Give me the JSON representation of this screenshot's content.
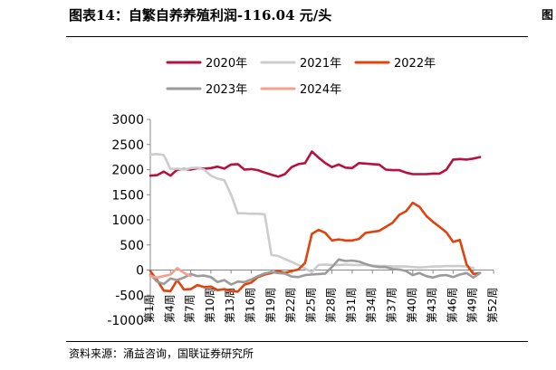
{
  "header": {
    "title": "图表14：自繁自养养殖利润-116.04 元/头"
  },
  "footer": {
    "source": "资料来源：涌益咨询，国联证券研究所"
  },
  "edge": {
    "next_title_fragment": "图"
  },
  "chart_data": {
    "type": "line",
    "title": "",
    "xlabel": "",
    "ylabel": "",
    "ylim": [
      -1000,
      3000
    ],
    "yticks": [
      -1000,
      -500,
      0,
      500,
      1000,
      1500,
      2000,
      2500,
      3000
    ],
    "xlim": [
      1,
      52
    ],
    "xtick_weeks": [
      1,
      4,
      7,
      10,
      13,
      16,
      19,
      22,
      25,
      28,
      31,
      34,
      37,
      40,
      43,
      46,
      49,
      52
    ],
    "xtick_labels": [
      "第1周",
      "第4周",
      "第7周",
      "第10周",
      "第13周",
      "第16周",
      "第19周",
      "第22周",
      "第25周",
      "第28周",
      "第31周",
      "第34周",
      "第37周",
      "第40周",
      "第43周",
      "第46周",
      "第49周",
      "第52周"
    ],
    "grid": false,
    "legend_position": "top",
    "series": [
      {
        "name": "2020年",
        "color": "#b5123f",
        "points": [
          [
            1,
            1880
          ],
          [
            2,
            1890
          ],
          [
            3,
            1960
          ],
          [
            4,
            1880
          ],
          [
            5,
            2000
          ],
          [
            6,
            2010
          ],
          [
            7,
            2000
          ],
          [
            8,
            2030
          ],
          [
            9,
            2020
          ],
          [
            10,
            2030
          ],
          [
            11,
            2060
          ],
          [
            12,
            2020
          ],
          [
            13,
            2100
          ],
          [
            14,
            2110
          ],
          [
            15,
            2000
          ],
          [
            16,
            2010
          ],
          [
            17,
            1990
          ],
          [
            18,
            1940
          ],
          [
            19,
            1900
          ],
          [
            20,
            1860
          ],
          [
            21,
            1910
          ],
          [
            22,
            2050
          ],
          [
            23,
            2110
          ],
          [
            24,
            2130
          ],
          [
            25,
            2360
          ],
          [
            26,
            2240
          ],
          [
            27,
            2130
          ],
          [
            28,
            2050
          ],
          [
            29,
            2100
          ],
          [
            30,
            2040
          ],
          [
            31,
            2030
          ],
          [
            32,
            2130
          ],
          [
            33,
            2120
          ],
          [
            34,
            2110
          ],
          [
            35,
            2100
          ],
          [
            36,
            2000
          ],
          [
            37,
            1990
          ],
          [
            38,
            1990
          ],
          [
            39,
            1940
          ],
          [
            40,
            1910
          ],
          [
            41,
            1910
          ],
          [
            42,
            1910
          ],
          [
            43,
            1920
          ],
          [
            44,
            1920
          ],
          [
            45,
            2000
          ],
          [
            46,
            2200
          ],
          [
            47,
            2210
          ],
          [
            48,
            2200
          ],
          [
            49,
            2220
          ],
          [
            50,
            2250
          ]
        ]
      },
      {
        "name": "2021年",
        "color": "#cccccc",
        "points": [
          [
            1,
            2300
          ],
          [
            2,
            2310
          ],
          [
            3,
            2290
          ],
          [
            4,
            2010
          ],
          [
            5,
            2020
          ],
          [
            6,
            2000
          ],
          [
            7,
            2030
          ],
          [
            8,
            2040
          ],
          [
            9,
            2000
          ],
          [
            10,
            1880
          ],
          [
            11,
            1820
          ],
          [
            12,
            1790
          ],
          [
            13,
            1500
          ],
          [
            14,
            1130
          ],
          [
            15,
            1130
          ],
          [
            16,
            1120
          ],
          [
            17,
            1120
          ],
          [
            18,
            1110
          ],
          [
            19,
            300
          ],
          [
            20,
            280
          ],
          [
            21,
            220
          ],
          [
            22,
            160
          ],
          [
            23,
            100
          ],
          [
            24,
            30
          ],
          [
            25,
            -40
          ],
          [
            26,
            100
          ],
          [
            27,
            110
          ],
          [
            28,
            100
          ],
          [
            29,
            100
          ],
          [
            30,
            110
          ],
          [
            31,
            100
          ],
          [
            32,
            100
          ],
          [
            33,
            100
          ],
          [
            34,
            90
          ],
          [
            35,
            80
          ],
          [
            36,
            80
          ],
          [
            37,
            70
          ],
          [
            38,
            70
          ],
          [
            39,
            70
          ],
          [
            40,
            60
          ],
          [
            41,
            50
          ],
          [
            42,
            60
          ],
          [
            43,
            70
          ],
          [
            44,
            70
          ],
          [
            45,
            80
          ],
          [
            46,
            80
          ],
          [
            47,
            80
          ],
          [
            48,
            70
          ],
          [
            49,
            40
          ]
        ]
      },
      {
        "name": "2022年",
        "color": "#e0440e",
        "points": [
          [
            1,
            -20
          ],
          [
            2,
            -200
          ],
          [
            3,
            -410
          ],
          [
            4,
            -420
          ],
          [
            5,
            -200
          ],
          [
            6,
            -390
          ],
          [
            7,
            -380
          ],
          [
            8,
            -300
          ],
          [
            9,
            -340
          ],
          [
            10,
            -330
          ],
          [
            11,
            -400
          ],
          [
            12,
            -380
          ],
          [
            13,
            -420
          ],
          [
            14,
            -430
          ],
          [
            15,
            -290
          ],
          [
            16,
            -250
          ],
          [
            17,
            -140
          ],
          [
            18,
            -90
          ],
          [
            19,
            -60
          ],
          [
            20,
            -20
          ],
          [
            21,
            -60
          ],
          [
            22,
            -20
          ],
          [
            23,
            10
          ],
          [
            24,
            140
          ],
          [
            25,
            720
          ],
          [
            26,
            800
          ],
          [
            27,
            740
          ],
          [
            28,
            590
          ],
          [
            29,
            610
          ],
          [
            30,
            590
          ],
          [
            31,
            590
          ],
          [
            32,
            620
          ],
          [
            33,
            740
          ],
          [
            34,
            760
          ],
          [
            35,
            780
          ],
          [
            36,
            860
          ],
          [
            37,
            940
          ],
          [
            38,
            1100
          ],
          [
            39,
            1170
          ],
          [
            40,
            1340
          ],
          [
            41,
            1260
          ],
          [
            42,
            1080
          ],
          [
            43,
            960
          ],
          [
            44,
            860
          ],
          [
            45,
            750
          ],
          [
            46,
            560
          ],
          [
            47,
            600
          ],
          [
            48,
            110
          ],
          [
            49,
            -80
          ],
          [
            50,
            -60
          ]
        ]
      },
      {
        "name": "2023年",
        "color": "#9b9b9b",
        "points": [
          [
            1,
            -90
          ],
          [
            2,
            -230
          ],
          [
            3,
            -280
          ],
          [
            4,
            -170
          ],
          [
            5,
            -200
          ],
          [
            6,
            -150
          ],
          [
            7,
            -80
          ],
          [
            8,
            -120
          ],
          [
            9,
            -110
          ],
          [
            10,
            -140
          ],
          [
            11,
            -240
          ],
          [
            12,
            -200
          ],
          [
            13,
            -290
          ],
          [
            14,
            -230
          ],
          [
            15,
            -240
          ],
          [
            16,
            -190
          ],
          [
            17,
            -120
          ],
          [
            18,
            -70
          ],
          [
            19,
            -40
          ],
          [
            20,
            -60
          ],
          [
            21,
            -70
          ],
          [
            22,
            -130
          ],
          [
            23,
            -140
          ],
          [
            24,
            -100
          ],
          [
            25,
            -90
          ],
          [
            26,
            -80
          ],
          [
            27,
            -70
          ],
          [
            28,
            60
          ],
          [
            29,
            210
          ],
          [
            30,
            180
          ],
          [
            31,
            190
          ],
          [
            32,
            170
          ],
          [
            33,
            120
          ],
          [
            34,
            80
          ],
          [
            35,
            60
          ],
          [
            36,
            60
          ],
          [
            37,
            20
          ],
          [
            38,
            10
          ],
          [
            39,
            -20
          ],
          [
            40,
            -100
          ],
          [
            41,
            -60
          ],
          [
            42,
            -120
          ],
          [
            43,
            -150
          ],
          [
            44,
            -110
          ],
          [
            45,
            -100
          ],
          [
            46,
            -140
          ],
          [
            47,
            -90
          ],
          [
            48,
            -60
          ],
          [
            49,
            -150
          ],
          [
            50,
            -60
          ]
        ]
      },
      {
        "name": "2024年",
        "color": "#f5a08c",
        "points": [
          [
            1,
            -120
          ],
          [
            2,
            -150
          ],
          [
            3,
            -120
          ],
          [
            4,
            -90
          ],
          [
            5,
            40
          ],
          [
            6,
            -60
          ],
          [
            7,
            -120
          ]
        ]
      }
    ]
  }
}
